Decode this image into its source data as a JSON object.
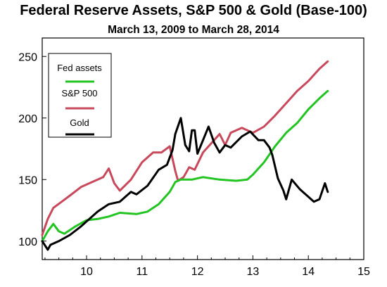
{
  "chart_data": {
    "type": "line",
    "title": "Federal Reserve Assets, S&P 500 & Gold (Base-100)",
    "subtitle": "March 13, 2009 to March 28, 2014",
    "xlabel": "",
    "ylabel": "",
    "xlim": [
      9.2,
      15
    ],
    "ylim": [
      85,
      265
    ],
    "x_ticks": [
      10,
      11,
      12,
      13,
      14,
      15
    ],
    "x_tick_labels": [
      "10",
      "11",
      "12",
      "13",
      "14",
      "15"
    ],
    "y_ticks": [
      100,
      150,
      200,
      250
    ],
    "y_tick_labels": [
      "100",
      "150",
      "200",
      "250"
    ],
    "grid": false,
    "legend": {
      "position": "top-left"
    },
    "series": [
      {
        "name": "Fed assets",
        "color": "#22c422",
        "x": [
          9.2,
          9.3,
          9.4,
          9.5,
          9.6,
          9.8,
          10.0,
          10.2,
          10.4,
          10.6,
          10.9,
          11.1,
          11.3,
          11.5,
          11.6,
          11.7,
          11.9,
          12.1,
          12.4,
          12.7,
          12.9,
          13.0,
          13.2,
          13.4,
          13.6,
          13.8,
          14.0,
          14.2,
          14.35
        ],
        "values": [
          100,
          108,
          114,
          108,
          106,
          112,
          117,
          118,
          120,
          123,
          122,
          124,
          130,
          140,
          148,
          150,
          150,
          152,
          150,
          149,
          150,
          154,
          164,
          177,
          188,
          196,
          207,
          216,
          222
        ]
      },
      {
        "name": "S&P 500",
        "color": "#c8485c",
        "x": [
          9.2,
          9.3,
          9.4,
          9.55,
          9.7,
          9.9,
          10.1,
          10.3,
          10.4,
          10.5,
          10.6,
          10.8,
          11.0,
          11.2,
          11.35,
          11.5,
          11.6,
          11.65,
          11.75,
          11.85,
          11.95,
          12.1,
          12.3,
          12.4,
          12.5,
          12.6,
          12.8,
          13.0,
          13.2,
          13.4,
          13.6,
          13.8,
          14.0,
          14.2,
          14.35
        ],
        "values": [
          105,
          118,
          127,
          132,
          137,
          144,
          148,
          152,
          159,
          147,
          141,
          150,
          164,
          172,
          172,
          177,
          157,
          149,
          152,
          160,
          158,
          172,
          182,
          187,
          178,
          188,
          192,
          188,
          193,
          202,
          212,
          222,
          230,
          240,
          246
        ]
      },
      {
        "name": "Gold",
        "color": "#000000",
        "x": [
          9.2,
          9.3,
          9.35,
          9.5,
          9.7,
          9.9,
          10.05,
          10.2,
          10.4,
          10.6,
          10.8,
          10.9,
          11.1,
          11.3,
          11.45,
          11.55,
          11.6,
          11.7,
          11.78,
          11.85,
          11.9,
          11.95,
          12.0,
          12.1,
          12.2,
          12.3,
          12.4,
          12.5,
          12.6,
          12.8,
          12.95,
          13.1,
          13.2,
          13.3,
          13.35,
          13.45,
          13.55,
          13.6,
          13.7,
          13.85,
          13.95,
          14.1,
          14.2,
          14.3,
          14.35
        ],
        "values": [
          100,
          93,
          97,
          100,
          105,
          112,
          118,
          124,
          130,
          132,
          140,
          138,
          145,
          158,
          162,
          174,
          187,
          200,
          178,
          173,
          190,
          190,
          171,
          182,
          193,
          180,
          172,
          178,
          176,
          185,
          189,
          182,
          182,
          176,
          170,
          151,
          141,
          134,
          150,
          142,
          138,
          132,
          134,
          147,
          140
        ]
      }
    ]
  }
}
